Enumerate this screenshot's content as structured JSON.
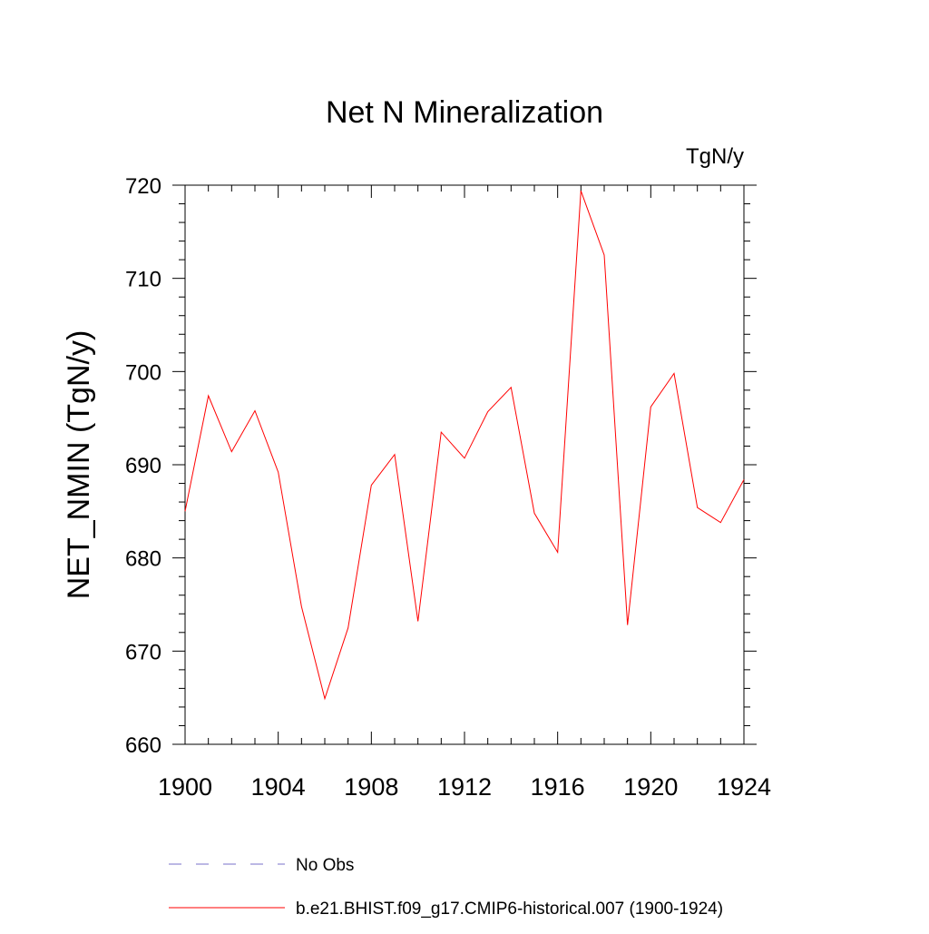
{
  "chart_data": {
    "type": "line",
    "title": "Net N Mineralization",
    "units_label": "TgN/y",
    "ylabel": "NET_NMIN  (TgN/y)",
    "xlabel": "",
    "xlim": [
      1900,
      1924
    ],
    "ylim": [
      660,
      720
    ],
    "x_ticks": [
      1900,
      1904,
      1908,
      1912,
      1916,
      1920,
      1924
    ],
    "x_tick_labels": [
      "1900",
      "1904",
      "1908",
      "1912",
      "1916",
      "1920",
      "1924"
    ],
    "y_ticks": [
      660,
      670,
      680,
      690,
      700,
      710,
      720
    ],
    "y_tick_labels": [
      "660",
      "670",
      "680",
      "690",
      "700",
      "710",
      "720"
    ],
    "grid": false,
    "legend_position": "bottom",
    "series": [
      {
        "name": "b.e21.BHIST.f09_g17.CMIP6-historical.007 (1900-1924)",
        "color": "#ff0000",
        "style": "solid",
        "x": [
          1900,
          1901,
          1902,
          1903,
          1904,
          1905,
          1906,
          1907,
          1908,
          1909,
          1910,
          1911,
          1912,
          1913,
          1914,
          1915,
          1916,
          1917,
          1918,
          1919,
          1920,
          1921,
          1922,
          1923,
          1924
        ],
        "values": [
          685.0,
          697.4,
          691.4,
          695.8,
          689.2,
          674.8,
          664.9,
          672.5,
          687.8,
          691.1,
          673.2,
          693.5,
          690.7,
          695.7,
          698.3,
          684.8,
          680.6,
          719.4,
          712.5,
          672.8,
          696.2,
          699.8,
          685.4,
          683.8,
          688.4
        ]
      }
    ],
    "legend": [
      {
        "label": "No Obs",
        "color": "#7a70c8",
        "style": "dashed"
      },
      {
        "label": "b.e21.BHIST.f09_g17.CMIP6-historical.007 (1900-1924)",
        "color": "#ff0000",
        "style": "solid"
      }
    ]
  }
}
